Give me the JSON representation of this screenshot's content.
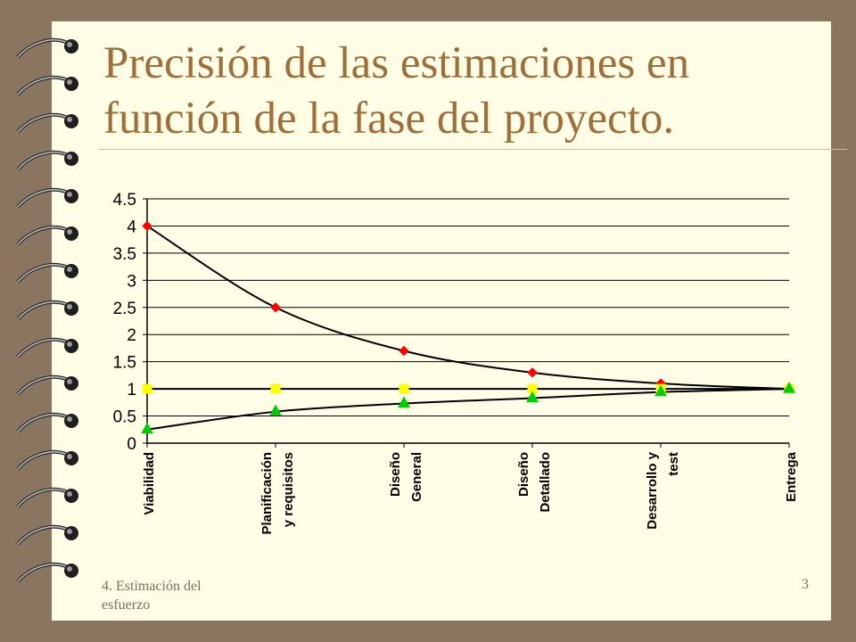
{
  "slide": {
    "title_line1": "Precisión de las estimaciones en",
    "title_line2": "función de la fase del proyecto.",
    "footer_left_line1": "4. Estimación del",
    "footer_left_line2": "esfuerzo",
    "page_number": "3"
  },
  "colors": {
    "background": "#8a7560",
    "page": "#fffde6",
    "title": "#9e6f3a",
    "upper_marker": "#ff0000",
    "target_marker": "#ffff00",
    "lower_marker": "#00cc00",
    "line": "#000000"
  },
  "chart_data": {
    "type": "line",
    "categories": [
      [
        "Viabilidad"
      ],
      [
        "Planificación",
        "y requisitos"
      ],
      [
        "Diseño",
        "General"
      ],
      [
        "Diseño",
        "Detallado"
      ],
      [
        "Desarrollo y",
        "test"
      ],
      [
        "Entrega"
      ]
    ],
    "series": [
      {
        "key": "upper",
        "marker": "diamond",
        "color": "#ff0000",
        "values": [
          4,
          2.5,
          1.7,
          1.3,
          1.1,
          1.0
        ]
      },
      {
        "key": "target",
        "marker": "square",
        "color": "#ffff00",
        "values": [
          1,
          1,
          1,
          1,
          1,
          1
        ]
      },
      {
        "key": "lower",
        "marker": "triangle",
        "color": "#00cc00",
        "values": [
          0.25,
          0.58,
          0.73,
          0.83,
          0.94,
          1.0
        ]
      }
    ],
    "ylim": [
      0,
      4.5
    ],
    "yticks": [
      "0",
      "0.5",
      "1",
      "1.5",
      "2",
      "2.5",
      "3",
      "3.5",
      "4",
      "4.5"
    ],
    "ytick_values": [
      0,
      0.5,
      1,
      1.5,
      2,
      2.5,
      3,
      3.5,
      4,
      4.5
    ],
    "grid": true,
    "legend": "none"
  }
}
